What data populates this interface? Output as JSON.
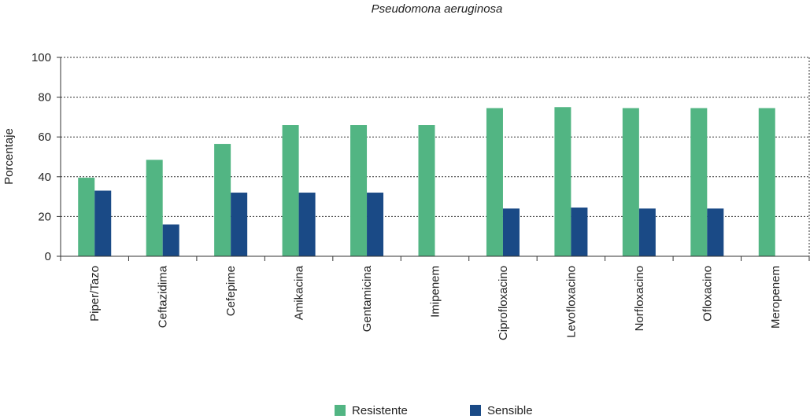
{
  "chart_data": {
    "type": "bar",
    "title": "Pseudomona aeruginosa",
    "xlabel": "",
    "ylabel": "Porcentaje",
    "ylim": [
      0,
      100
    ],
    "yticks": [
      0,
      20,
      40,
      60,
      80,
      100
    ],
    "grid": "horizontal dotted",
    "legend_position": "bottom",
    "categories": [
      "Piper/Tazo",
      "Ceftazidima",
      "Cefepime",
      "Amikacina",
      "Gentamicina",
      "Imipenem",
      "Ciprofloxacino",
      "Levofloxacino",
      "Norfloxacino",
      "Ofloxacino",
      "Meropenem"
    ],
    "series": [
      {
        "name": "Resistente",
        "color": "#52b583",
        "values": [
          39.5,
          48.5,
          56.5,
          66,
          66,
          66,
          74.5,
          75,
          74.5,
          74.5,
          74.5
        ]
      },
      {
        "name": "Sensible",
        "color": "#1a4a86",
        "values": [
          33,
          16,
          32,
          32,
          32,
          0,
          24,
          24.5,
          24,
          24,
          0
        ]
      }
    ]
  }
}
